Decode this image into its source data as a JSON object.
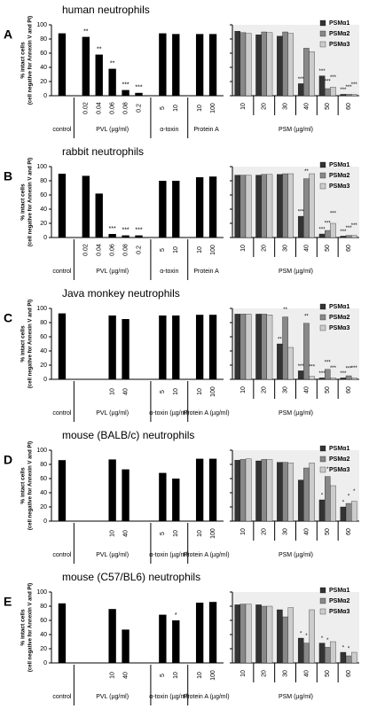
{
  "chart_data": [
    {
      "type": "bar",
      "panel": "A",
      "title": "human neutrophils",
      "ylabel": "% intact cells",
      "ylabel2": "(cell negative for Annexin V and PI)",
      "ylim": [
        0,
        100
      ],
      "yticks": [
        0,
        20,
        40,
        60,
        80,
        100
      ],
      "groups": [
        {
          "name": "control",
          "categories": [
            null
          ],
          "values": [
            88
          ]
        },
        {
          "name": "PVL (µg/ml)",
          "categories": [
            "0.02",
            "0.04",
            "0.06",
            "0.08",
            "0.2"
          ],
          "values": [
            83,
            58,
            38,
            8,
            4
          ],
          "significance": [
            "**",
            "**",
            "**",
            "***",
            "***"
          ]
        },
        {
          "name": "α-toxin",
          "categories": [
            "5",
            "10"
          ],
          "values": [
            88,
            87
          ]
        },
        {
          "name": "Protein A",
          "categories": [
            "10",
            "100"
          ],
          "values": [
            87,
            87
          ]
        }
      ]
    },
    {
      "type": "grouped_bar",
      "xlabel": "PSM (µg/ml)",
      "categories": [
        "10",
        "20",
        "30",
        "40",
        "50",
        "60"
      ],
      "ylim": [
        0,
        100
      ],
      "yticks": [
        0,
        20,
        40,
        60,
        80,
        100
      ],
      "legend": "upper right",
      "series": [
        {
          "name": "PSMα1",
          "color": "#333333",
          "values": [
            91,
            86,
            84,
            17,
            28,
            2
          ],
          "significance": [
            null,
            null,
            null,
            "***",
            "***",
            "***"
          ]
        },
        {
          "name": "PSMα2",
          "color": "#888888",
          "values": [
            89,
            90,
            90,
            67,
            10,
            2
          ],
          "significance": [
            null,
            null,
            null,
            null,
            "***",
            "***"
          ]
        },
        {
          "name": "PSMα3",
          "color": "#cccccc",
          "values": [
            88,
            89,
            88,
            62,
            12,
            2
          ],
          "significance": [
            null,
            null,
            null,
            null,
            "***",
            "***"
          ]
        }
      ]
    },
    {
      "type": "bar",
      "panel": "B",
      "title": "rabbit neutrophils",
      "ylabel": "% intact cells",
      "ylabel2": "(cell negative for Annexin V and PI)",
      "ylim": [
        0,
        100
      ],
      "yticks": [
        0,
        20,
        40,
        60,
        80,
        100
      ],
      "groups": [
        {
          "name": "control",
          "categories": [
            null
          ],
          "values": [
            90
          ]
        },
        {
          "name": "PVL (µg/ml)",
          "categories": [
            "0.02",
            "0.04",
            "0.06",
            "0.08",
            "0.2"
          ],
          "values": [
            87,
            62,
            5,
            3,
            3
          ],
          "significance": [
            null,
            null,
            "***",
            "***",
            "***"
          ]
        },
        {
          "name": "α-toxin",
          "categories": [
            "5",
            "10"
          ],
          "values": [
            80,
            80
          ]
        },
        {
          "name": "Protein A",
          "categories": [
            "10",
            "100"
          ],
          "values": [
            85,
            86
          ]
        }
      ]
    },
    {
      "type": "grouped_bar",
      "xlabel": "PSM (µg/ml)",
      "categories": [
        "10",
        "20",
        "30",
        "40",
        "50",
        "60"
      ],
      "ylim": [
        0,
        100
      ],
      "yticks": [
        0,
        20,
        40,
        60,
        80,
        100
      ],
      "legend": "upper right",
      "series": [
        {
          "name": "PSMα1",
          "color": "#333333",
          "values": [
            88,
            88,
            89,
            30,
            5,
            2
          ],
          "significance": [
            null,
            null,
            null,
            "***",
            "***",
            "***"
          ]
        },
        {
          "name": "PSMα2",
          "color": "#888888",
          "values": [
            88,
            89,
            90,
            83,
            10,
            3
          ],
          "significance": [
            null,
            null,
            null,
            "**",
            "***",
            "***"
          ]
        },
        {
          "name": "PSMα3",
          "color": "#cccccc",
          "values": [
            88,
            89,
            90,
            90,
            20,
            3
          ],
          "significance": [
            null,
            null,
            null,
            null,
            "***",
            "***"
          ]
        }
      ]
    },
    {
      "type": "bar",
      "panel": "C",
      "title": "Java monkey neutrophils",
      "ylabel": "% intact cells",
      "ylabel2": "(cell negative for Annexin V and PI)",
      "ylim": [
        0,
        100
      ],
      "yticks": [
        0,
        20,
        40,
        60,
        80,
        100
      ],
      "groups": [
        {
          "name": "control",
          "categories": [
            null
          ],
          "values": [
            93
          ]
        },
        {
          "name": "PVL (µg/ml)",
          "categories": [
            null,
            null,
            "10",
            "40",
            null
          ],
          "values": [
            null,
            null,
            90,
            85,
            null
          ]
        },
        {
          "name": "α-toxin (µg/ml)",
          "categories": [
            "5",
            "10"
          ],
          "values": [
            90,
            90
          ]
        },
        {
          "name": "Protein A (µg/ml)",
          "categories": [
            "10",
            "100"
          ],
          "values": [
            91,
            91
          ]
        }
      ]
    },
    {
      "type": "grouped_bar",
      "xlabel": "PSM (µg/ml)",
      "categories": [
        "10",
        "20",
        "30",
        "40",
        "50",
        "60"
      ],
      "ylim": [
        0,
        100
      ],
      "yticks": [
        0,
        20,
        40,
        60,
        80,
        100
      ],
      "legend": "upper right",
      "series": [
        {
          "name": "PSMα1",
          "color": "#333333",
          "values": [
            92,
            92,
            50,
            12,
            2,
            2
          ],
          "significance": [
            null,
            null,
            "**",
            "***",
            "***",
            "***"
          ]
        },
        {
          "name": "PSMα2",
          "color": "#888888",
          "values": [
            92,
            92,
            88,
            79,
            14,
            5
          ],
          "significance": [
            null,
            null,
            "**",
            "**",
            "***",
            "***"
          ]
        },
        {
          "name": "PSMα3",
          "color": "#cccccc",
          "values": [
            92,
            91,
            45,
            4,
            2,
            2
          ],
          "significance": [
            null,
            null,
            null,
            "***",
            "***",
            "***"
          ]
        }
      ]
    },
    {
      "type": "bar",
      "panel": "D",
      "title": "mouse (BALB/c) neutrophils",
      "ylabel": "% intact cells",
      "ylabel2": "(cell negative for Annexin V and PI)",
      "ylim": [
        0,
        100
      ],
      "yticks": [
        0,
        20,
        40,
        60,
        80,
        100
      ],
      "groups": [
        {
          "name": "control",
          "categories": [
            null
          ],
          "values": [
            86
          ]
        },
        {
          "name": "PVL (µg/ml)",
          "categories": [
            null,
            null,
            "10",
            "40",
            null
          ],
          "values": [
            null,
            null,
            87,
            73,
            null
          ]
        },
        {
          "name": "α-toxin (µg/ml)",
          "categories": [
            "5",
            "10"
          ],
          "values": [
            68,
            60
          ]
        },
        {
          "name": "Protein A (µg/ml)",
          "categories": [
            "10",
            "100"
          ],
          "values": [
            88,
            88
          ]
        }
      ]
    },
    {
      "type": "grouped_bar",
      "xlabel": "PSM (µg/ml)",
      "categories": [
        "10",
        "20",
        "30",
        "40",
        "50",
        "60"
      ],
      "ylim": [
        0,
        100
      ],
      "yticks": [
        0,
        20,
        40,
        60,
        80,
        100
      ],
      "legend": "upper right",
      "series": [
        {
          "name": "PSMα1",
          "color": "#333333",
          "values": [
            86,
            85,
            83,
            58,
            30,
            20
          ],
          "significance": [
            null,
            null,
            null,
            null,
            "*",
            "*"
          ]
        },
        {
          "name": "PSMα2",
          "color": "#888888",
          "values": [
            87,
            87,
            83,
            75,
            63,
            25
          ],
          "significance": [
            null,
            null,
            null,
            null,
            "*",
            "*"
          ]
        },
        {
          "name": "PSMα3",
          "color": "#cccccc",
          "values": [
            88,
            87,
            82,
            82,
            50,
            28
          ],
          "significance": [
            null,
            null,
            null,
            null,
            null,
            "*"
          ]
        }
      ]
    },
    {
      "type": "bar",
      "panel": "E",
      "title": "mouse (C57/BL6) neutrophils",
      "ylabel": "% intact cells",
      "ylabel2": "(cell negative for Annexin V and PI)",
      "ylim": [
        0,
        100
      ],
      "yticks": [
        0,
        20,
        40,
        60,
        80,
        100
      ],
      "groups": [
        {
          "name": "control",
          "categories": [
            null
          ],
          "values": [
            84
          ]
        },
        {
          "name": "PVL (µg/ml)",
          "categories": [
            null,
            null,
            "10",
            "40",
            null
          ],
          "values": [
            null,
            null,
            76,
            47,
            null
          ]
        },
        {
          "name": "α-toxin (µg/ml)",
          "categories": [
            "5",
            "10"
          ],
          "values": [
            68,
            60
          ],
          "significance": [
            null,
            "*"
          ]
        },
        {
          "name": "Protein A (µg/ml)",
          "categories": [
            "10",
            "100"
          ],
          "values": [
            85,
            86
          ]
        }
      ]
    },
    {
      "type": "grouped_bar",
      "xlabel": "PSM (µg/ml)",
      "categories": [
        "10",
        "20",
        "30",
        "40",
        "50",
        "60"
      ],
      "ylim": [
        0,
        100
      ],
      "yticks": [
        0,
        20,
        40,
        60,
        80,
        100
      ],
      "legend": "upper right",
      "series": [
        {
          "name": "PSMα1",
          "color": "#333333",
          "values": [
            82,
            82,
            75,
            35,
            28,
            15
          ],
          "significance": [
            null,
            null,
            null,
            "*",
            "*",
            "*"
          ]
        },
        {
          "name": "PSMα2",
          "color": "#888888",
          "values": [
            83,
            80,
            65,
            28,
            22,
            10
          ],
          "significance": [
            null,
            null,
            null,
            "*",
            "*",
            "*"
          ]
        },
        {
          "name": "PSMα3",
          "color": "#cccccc",
          "values": [
            83,
            80,
            78,
            75,
            30,
            15
          ]
        }
      ]
    }
  ]
}
